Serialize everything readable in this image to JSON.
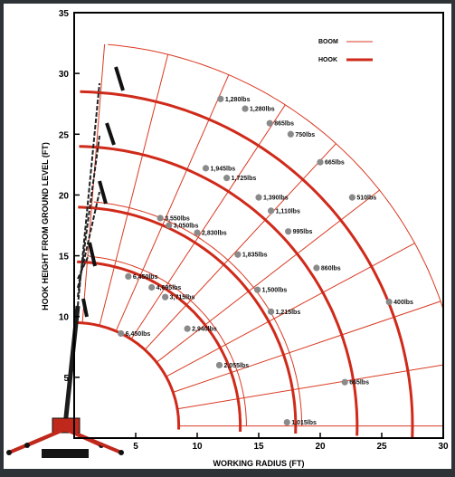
{
  "colors": {
    "background": "#2e3338",
    "paper": "#ffffff",
    "frame": "#000000",
    "boom": "#d93a22",
    "hook": "#cf2a1a",
    "marker": "#8a8a8a",
    "text": "#111111",
    "crane": "#c0281c"
  },
  "legend": {
    "boom_label": "BOOM",
    "hook_label": "HOOK"
  },
  "axes": {
    "xlabel": "WORKING RADIUS (FT)",
    "ylabel": "HOOK HEIGHT FROM GROUND LEVEL (FT)",
    "xlim": [
      0,
      30
    ],
    "ylim": [
      0,
      35
    ],
    "x_ticks": [
      "5",
      "10",
      "15",
      "20",
      "25",
      "30"
    ],
    "y_ticks": [
      "5",
      "10",
      "15",
      "20",
      "25",
      "30",
      "35"
    ]
  },
  "chart_data": {
    "type": "scatter",
    "title": "",
    "xlabel": "WORKING RADIUS (FT)",
    "ylabel": "HOOK HEIGHT FROM GROUND LEVEL (FT)",
    "xlim": [
      0,
      30
    ],
    "ylim": [
      0,
      35
    ],
    "grid": true,
    "legend_position": "top-right",
    "boom_pivot": [
      0,
      1
    ],
    "boom_arc_radii_ft": [
      8.5,
      14,
      18.5,
      23,
      27.5,
      31.5
    ],
    "boom_ray_angles_deg": [
      0,
      9.5,
      19,
      28.5,
      38,
      47.5,
      57,
      66.5,
      76,
      85.5
    ],
    "hook_arcs": [
      {
        "name": "HOOK",
        "radius": 8.5
      },
      {
        "name": "HOOK",
        "radius": 13.5
      },
      {
        "name": "HOOK",
        "radius": 18
      },
      {
        "name": "HOOK",
        "radius": 23
      },
      {
        "name": "HOOK",
        "radius": 27.5
      }
    ],
    "points": [
      {
        "x": 3.8,
        "y": 8.6,
        "label": "6,450lbs"
      },
      {
        "x": 4.4,
        "y": 13.3,
        "label": "6,450lbs"
      },
      {
        "x": 6.3,
        "y": 12.4,
        "label": "4,695lbs"
      },
      {
        "x": 7.4,
        "y": 11.6,
        "label": "3,715lbs"
      },
      {
        "x": 9.2,
        "y": 9.0,
        "label": "2,940lbs"
      },
      {
        "x": 11.8,
        "y": 6.0,
        "label": "2,055lbs"
      },
      {
        "x": 17.3,
        "y": 1.3,
        "label": "1,015lbs"
      },
      {
        "x": 22.0,
        "y": 4.6,
        "label": "665lbs"
      },
      {
        "x": 25.6,
        "y": 11.2,
        "label": "400lbs"
      },
      {
        "x": 16.0,
        "y": 10.4,
        "label": "1,215lbs"
      },
      {
        "x": 14.9,
        "y": 12.2,
        "label": "1,500lbs"
      },
      {
        "x": 19.7,
        "y": 14.0,
        "label": "860lbs"
      },
      {
        "x": 22.6,
        "y": 19.8,
        "label": "510lbs"
      },
      {
        "x": 13.3,
        "y": 15.1,
        "label": "1,835lbs"
      },
      {
        "x": 17.4,
        "y": 17.0,
        "label": "995lbs"
      },
      {
        "x": 16.0,
        "y": 18.7,
        "label": "1,110lbs"
      },
      {
        "x": 15.0,
        "y": 19.8,
        "label": "1,390lbs"
      },
      {
        "x": 10.0,
        "y": 16.9,
        "label": "2,830lbs"
      },
      {
        "x": 7.7,
        "y": 17.5,
        "label": "3,050lbs"
      },
      {
        "x": 7.0,
        "y": 18.1,
        "label": "3,550lbs"
      },
      {
        "x": 12.4,
        "y": 21.4,
        "label": "1,725lbs"
      },
      {
        "x": 10.7,
        "y": 22.2,
        "label": "1,945lbs"
      },
      {
        "x": 20.0,
        "y": 22.7,
        "label": "665lbs"
      },
      {
        "x": 17.6,
        "y": 25.0,
        "label": "750lbs"
      },
      {
        "x": 15.9,
        "y": 25.9,
        "label": "865lbs"
      },
      {
        "x": 13.9,
        "y": 27.1,
        "label": "1,280lbs"
      },
      {
        "x": 11.9,
        "y": 27.9,
        "label": "1,280lbs"
      }
    ]
  }
}
